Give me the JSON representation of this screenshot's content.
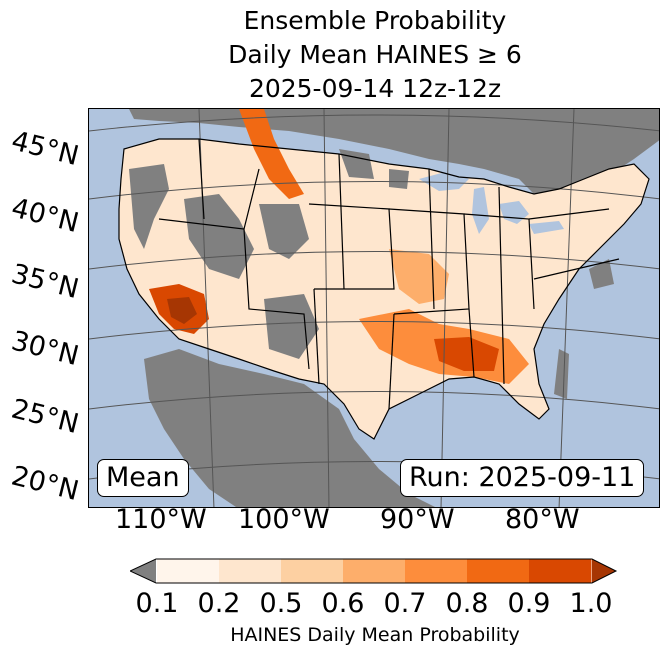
{
  "title": {
    "line1": "Ensemble Probability",
    "line2": "Daily Mean HAINES ≥ 6",
    "line3": "2025-09-14 12z-12z"
  },
  "map": {
    "mean_label": "Mean",
    "run_label": "Run: 2025-09-11",
    "lat_labels": [
      "45°N",
      "40°N",
      "35°N",
      "30°N",
      "25°N",
      "20°N"
    ],
    "lon_labels": [
      "110°W",
      "100°W",
      "90°W",
      "80°W"
    ]
  },
  "colorbar": {
    "ticks": [
      "0.1",
      "0.2",
      "0.5",
      "0.6",
      "0.7",
      "0.8",
      "0.9",
      "1.0"
    ],
    "colors": [
      "#fff5eb",
      "#fee6ce",
      "#fdd0a2",
      "#fdae6b",
      "#fd8d3c",
      "#f16913",
      "#d94801",
      "#a63603"
    ],
    "under_color": "#808080",
    "label": "HAINES Daily Mean Probability"
  },
  "colors": {
    "ocean": "#b0c4de",
    "no_data": "#808080",
    "land_low": "#fff5eb"
  }
}
